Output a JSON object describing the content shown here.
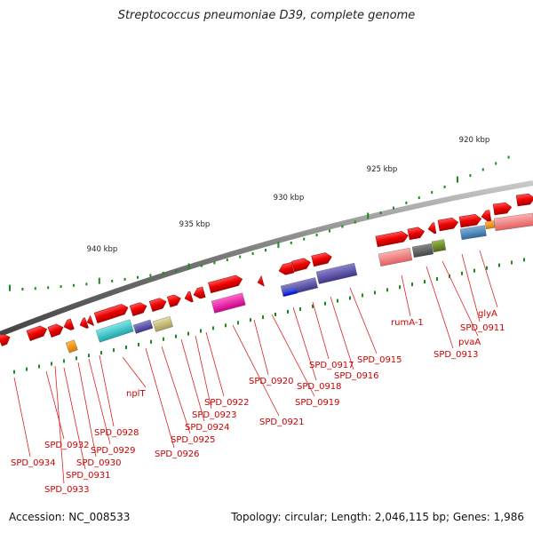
{
  "title": "Streptococcus pneumoniae D39, complete genome",
  "footer": {
    "accession": "Accession: NC_008533",
    "summary": "Topology: circular; Length: 2,046,115 bp; Genes: 1,986"
  },
  "scale_labels": [
    "920 kbp",
    "925 kbp",
    "930 kbp",
    "935 kbp",
    "940 kbp"
  ],
  "gene_labels": [
    "SPD_0934",
    "SPD_0933",
    "SPD_0932",
    "SPD_0931",
    "SPD_0930",
    "SPD_0929",
    "SPD_0928",
    "nplT",
    "SPD_0926",
    "SPD_0925",
    "SPD_0924",
    "SPD_0923",
    "SPD_0922",
    "SPD_0921",
    "SPD_0920",
    "SPD_0919",
    "SPD_0918",
    "SPD_0917",
    "SPD_0916",
    "SPD_0915",
    "rumA-1",
    "SPD_0913",
    "pvaA",
    "SPD_0911",
    "glyA"
  ],
  "colors": {
    "gene": "#ee1111",
    "backbone": "#8a8a8a",
    "tick": "#1a8a1a",
    "label": "#cc0000",
    "leader": "#dd2222"
  }
}
